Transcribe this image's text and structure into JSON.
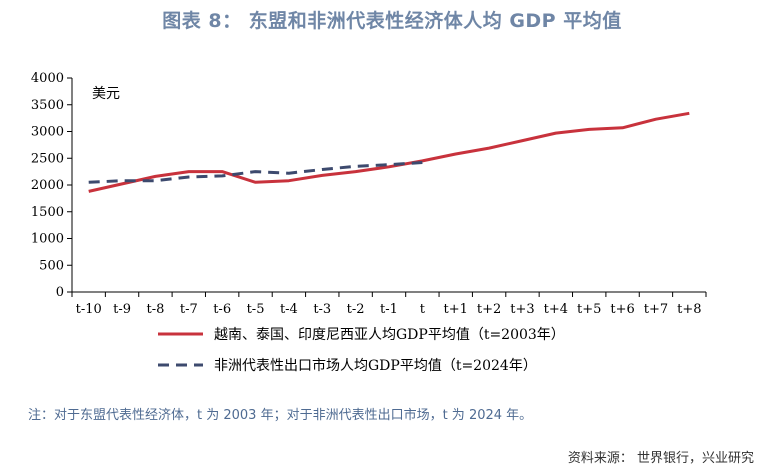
{
  "header": {
    "title": "图表 8： 东盟和非洲代表性经济体人均 GDP 平均值"
  },
  "footer": {
    "note": "注：对于东盟代表性经济体，t 为 2003 年；对于非洲代表性出口市场，t 为 2024 年。",
    "source": "资料来源：  世界银行，兴业研究"
  },
  "colors": {
    "asean": "#c8323c",
    "africa": "#3d4a6e",
    "title": "#6f86a6",
    "note": "#4f6b92"
  },
  "chart_data": {
    "type": "line",
    "title": "东盟和非洲代表性经济体人均 GDP 平均值",
    "ylabel": "美元",
    "xlabel": "",
    "ylim": [
      0,
      4000
    ],
    "yticks": [
      0,
      500,
      1000,
      1500,
      2000,
      2500,
      3000,
      3500,
      4000
    ],
    "categories": [
      "t-10",
      "t-9",
      "t-8",
      "t-7",
      "t-6",
      "t-5",
      "t-4",
      "t-3",
      "t-2",
      "t-1",
      "t",
      "t+1",
      "t+2",
      "t+3",
      "t+4",
      "t+5",
      "t+6",
      "t+7",
      "t+8"
    ],
    "series": [
      {
        "name": "越南、泰国、印度尼西亚人均GDP平均值（t=2003年）",
        "style": "solid",
        "values": [
          1880,
          2020,
          2160,
          2250,
          2250,
          2050,
          2080,
          2180,
          2250,
          2340,
          2450,
          2580,
          2690,
          2830,
          2970,
          3040,
          3070,
          3230,
          3340
        ]
      },
      {
        "name": "非洲代表性出口市场人均GDP平均值（t=2024年）",
        "style": "dashed",
        "values": [
          2050,
          2080,
          2080,
          2150,
          2170,
          2250,
          2220,
          2290,
          2350,
          2380,
          2420,
          null,
          null,
          null,
          null,
          null,
          null,
          null,
          null
        ]
      }
    ],
    "grid": false,
    "legend": "bottom"
  }
}
